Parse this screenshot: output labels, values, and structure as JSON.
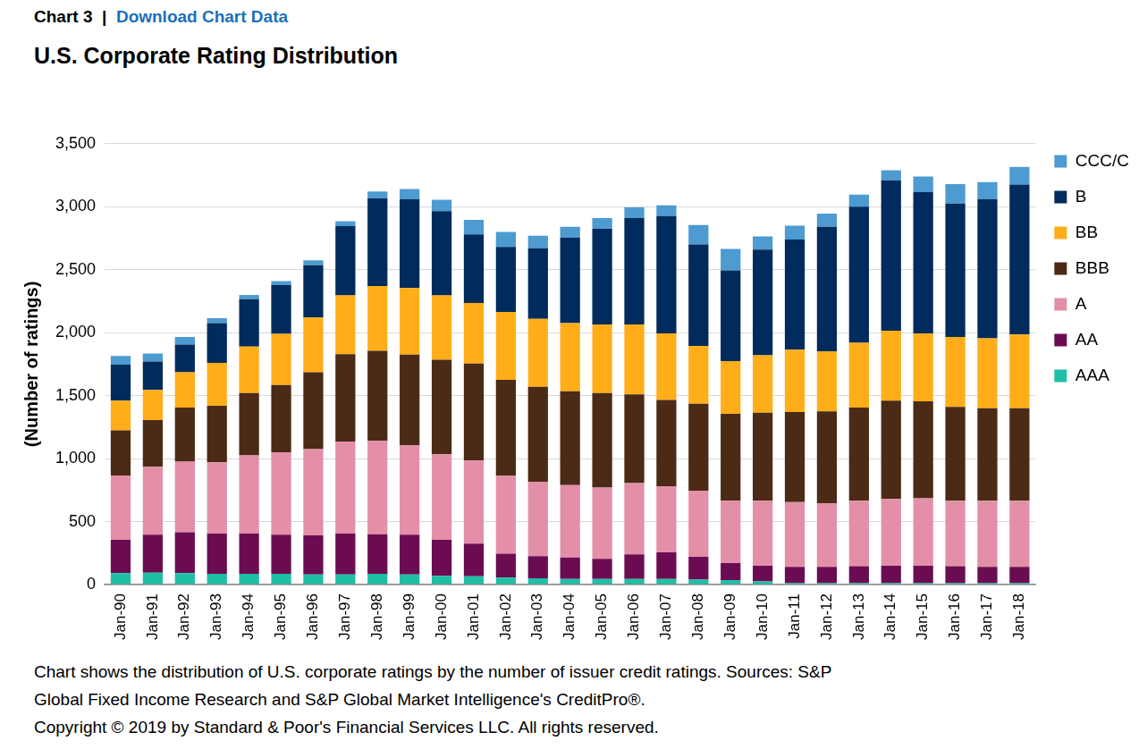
{
  "header": {
    "label": "Chart 3",
    "separator": "|",
    "link": "Download Chart Data"
  },
  "notes": [
    "Chart shows the distribution of U.S. corporate ratings by the number of issuer credit ratings. Sources: S&P",
    "Global Fixed Income Research and S&P Global Market Intelligence's CreditPro®.",
    "Copyright © 2019 by Standard & Poor's Financial Services LLC. All rights reserved."
  ],
  "chart_data": {
    "type": "bar",
    "stacked": true,
    "title": "U.S. Corporate Rating Distribution",
    "y_label": "(Number of ratings)",
    "grid": true,
    "legend": "right",
    "ylim": [
      0,
      3500
    ],
    "yticks": [
      0,
      500,
      {
        "value": 1000,
        "label": "1,000"
      },
      {
        "value": 1500,
        "label": "1,500"
      },
      {
        "value": 2000,
        "label": "2,000"
      },
      {
        "value": 2500,
        "label": "2,500"
      },
      {
        "value": 3000,
        "label": "3,000"
      },
      {
        "value": 3500,
        "label": "3,500"
      }
    ],
    "categories": [
      "Jan-90",
      "Jan-91",
      "Jan-92",
      "Jan-93",
      "Jan-94",
      "Jan-95",
      "Jan-96",
      "Jan-97",
      "Jan-98",
      "Jan-99",
      "Jan-00",
      "Jan-01",
      "Jan-02",
      "Jan-03",
      "Jan-04",
      "Jan-05",
      "Jan-06",
      "Jan-07",
      "Jan-08",
      "Jan-09",
      "Jan-10",
      "Jan-11",
      "Jan-12",
      "Jan-13",
      "Jan-14",
      "Jan-15",
      "Jan-16",
      "Jan-17",
      "Jan-18"
    ],
    "series": [
      {
        "name": "AAA",
        "color": "#1fbfa5",
        "values": [
          90,
          95,
          90,
          85,
          85,
          85,
          80,
          80,
          85,
          80,
          70,
          65,
          55,
          50,
          45,
          45,
          45,
          45,
          40,
          35,
          25,
          10,
          10,
          10,
          10,
          10,
          10,
          10,
          10
        ]
      },
      {
        "name": "AA",
        "color": "#6b0c52",
        "values": [
          265,
          300,
          325,
          320,
          320,
          310,
          310,
          325,
          315,
          315,
          285,
          260,
          190,
          175,
          170,
          160,
          195,
          210,
          180,
          135,
          125,
          130,
          130,
          135,
          140,
          140,
          135,
          130,
          130
        ]
      },
      {
        "name": "A",
        "color": "#e38fa8",
        "values": [
          510,
          540,
          560,
          565,
          620,
          655,
          685,
          730,
          740,
          710,
          680,
          660,
          620,
          590,
          575,
          565,
          565,
          525,
          525,
          495,
          515,
          515,
          505,
          520,
          530,
          535,
          520,
          525,
          525
        ]
      },
      {
        "name": "BBB",
        "color": "#4b2a16",
        "values": [
          360,
          370,
          430,
          450,
          495,
          535,
          610,
          695,
          715,
          720,
          750,
          770,
          760,
          755,
          745,
          750,
          705,
          685,
          690,
          690,
          700,
          715,
          730,
          740,
          780,
          770,
          745,
          735,
          735
        ]
      },
      {
        "name": "BB",
        "color": "#ffae1a",
        "values": [
          235,
          240,
          280,
          340,
          370,
          405,
          435,
          465,
          515,
          530,
          510,
          480,
          540,
          540,
          540,
          545,
          555,
          530,
          460,
          420,
          455,
          495,
          475,
          515,
          555,
          540,
          555,
          555,
          585
        ]
      },
      {
        "name": "B",
        "color": "#002b5c",
        "values": [
          285,
          225,
          220,
          315,
          375,
          390,
          415,
          550,
          695,
          705,
          670,
          545,
          515,
          560,
          680,
          760,
          845,
          930,
          805,
          720,
          840,
          875,
          990,
          1080,
          1195,
          1120,
          1060,
          1105,
          1190
        ]
      },
      {
        "name": "CCC/C",
        "color": "#4d9bd0",
        "values": [
          70,
          65,
          60,
          40,
          35,
          30,
          40,
          40,
          55,
          80,
          90,
          115,
          120,
          100,
          85,
          85,
          85,
          85,
          155,
          170,
          105,
          110,
          105,
          95,
          80,
          125,
          155,
          135,
          140
        ]
      }
    ]
  }
}
